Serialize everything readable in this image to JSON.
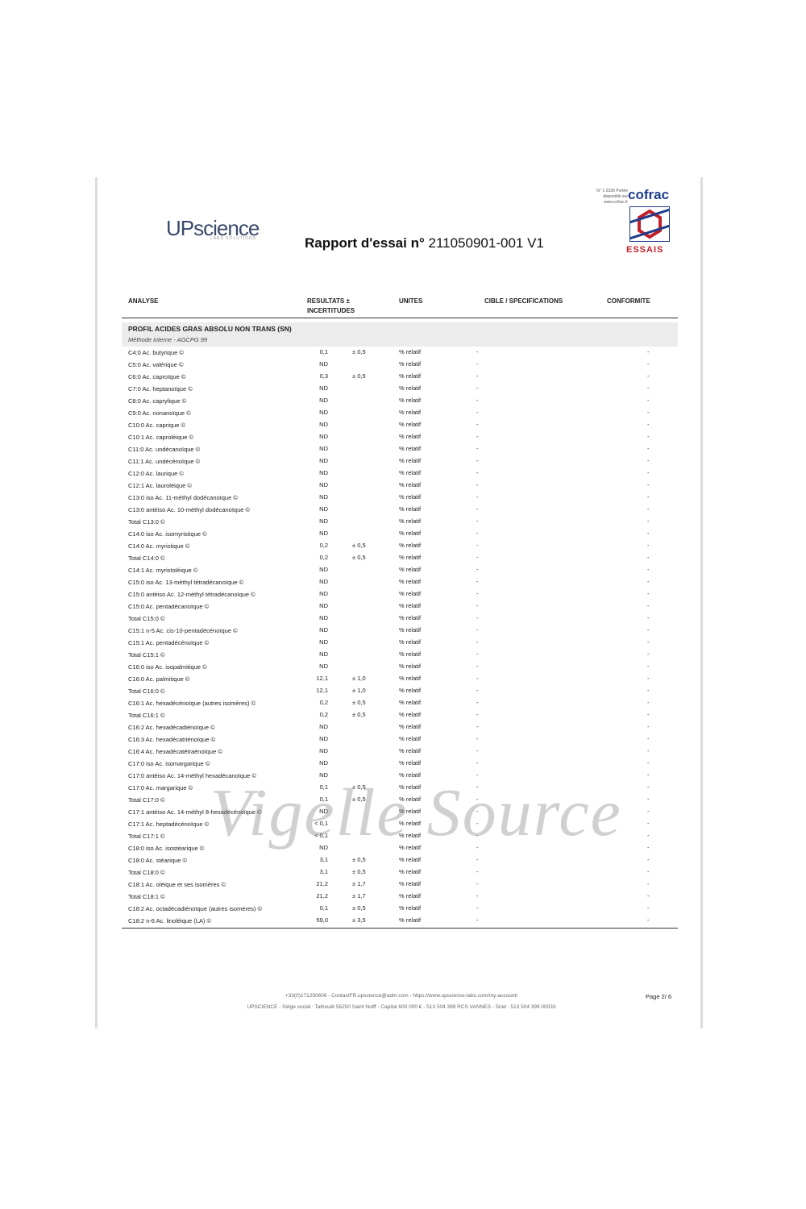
{
  "header": {
    "logo": "UPscience",
    "logo_sub": "LABS SOLUTIONS",
    "title_bold": "Rapport d'essai n°",
    "title_number": "211050901-001  V1",
    "cofrac_note": "N° 1-2336 Portée disponible sur www.cofrac.fr",
    "cofrac": "cofrac",
    "cofrac_sub": "ESSAIS"
  },
  "table": {
    "columns": [
      "ANALYSE",
      "RESULTATS ± INCERTITUDES",
      "UNITES",
      "CIBLE / SPECIFICATIONS",
      "CONFORMITE"
    ],
    "section": "PROFIL ACIDES GRAS ABSOLU NON TRANS (SN)",
    "method": "Méthode interne - AGCPG 99",
    "rows": [
      {
        "analyse": "C4:0 Ac. butyrique ©",
        "resultat": "0,1",
        "incertitude": "± 0,5",
        "unite": "% relatif",
        "cible": "-",
        "conformite": "-"
      },
      {
        "analyse": "C5:0 Ac. valérique ©",
        "resultat": "ND",
        "unite": "% relatif",
        "cible": "-",
        "conformite": "-"
      },
      {
        "analyse": "C6:0 Ac. caproïque ©",
        "resultat": "0,3",
        "incertitude": "± 0,5",
        "unite": "% relatif",
        "cible": "-",
        "conformite": "-"
      },
      {
        "analyse": "C7:0 Ac. heptanoïque ©",
        "resultat": "ND",
        "unite": "% relatif",
        "cible": "-",
        "conformite": "-"
      },
      {
        "analyse": "C8:0 Ac. caprylique ©",
        "resultat": "ND",
        "unite": "% relatif",
        "cible": "-",
        "conformite": "-"
      },
      {
        "analyse": "C9:0 Ac. nonanoïque ©",
        "resultat": "ND",
        "unite": "% relatif",
        "cible": "-",
        "conformite": "-"
      },
      {
        "analyse": "C10:0 Ac. caprique ©",
        "resultat": "ND",
        "unite": "% relatif",
        "cible": "-",
        "conformite": "-"
      },
      {
        "analyse": "C10:1 Ac. caproléique ©",
        "resultat": "ND",
        "unite": "% relatif",
        "cible": "-",
        "conformite": "-"
      },
      {
        "analyse": "C11:0 Ac. undécanoïque ©",
        "resultat": "ND",
        "unite": "% relatif",
        "cible": "-",
        "conformite": "-"
      },
      {
        "analyse": "C11:1 Ac. undécénoïque ©",
        "resultat": "ND",
        "unite": "% relatif",
        "cible": "-",
        "conformite": "-"
      },
      {
        "analyse": "C12:0 Ac. laurique ©",
        "resultat": "ND",
        "unite": "% relatif",
        "cible": "-",
        "conformite": "-"
      },
      {
        "analyse": "C12:1 Ac. lauroléique ©",
        "resultat": "ND",
        "unite": "% relatif",
        "cible": "-",
        "conformite": "-"
      },
      {
        "analyse": "C13:0 iso Ac. 11-méthyl dodécanoïque ©",
        "resultat": "ND",
        "unite": "% relatif",
        "cible": "-",
        "conformite": "-"
      },
      {
        "analyse": "C13:0 antéiso Ac. 10-méthyl dodécanoïque ©",
        "resultat": "ND",
        "unite": "% relatif",
        "cible": "-",
        "conformite": "-"
      },
      {
        "analyse": "Total C13:0 ©",
        "resultat": "ND",
        "unite": "% relatif",
        "cible": "-",
        "conformite": "-"
      },
      {
        "analyse": "C14:0 iso Ac. isomyristique ©",
        "resultat": "ND",
        "unite": "% relatif",
        "cible": "-",
        "conformite": "-"
      },
      {
        "analyse": "C14:0 Ac. myristique ©",
        "resultat": "0,2",
        "incertitude": "± 0,5",
        "unite": "% relatif",
        "cible": "-",
        "conformite": "-"
      },
      {
        "analyse": "Total C14:0 ©",
        "resultat": "0,2",
        "incertitude": "± 0,5",
        "unite": "% relatif",
        "cible": "-",
        "conformite": "-"
      },
      {
        "analyse": "C14:1 Ac. myristoléique ©",
        "resultat": "ND",
        "unite": "% relatif",
        "cible": "-",
        "conformite": "-"
      },
      {
        "analyse": "C15:0 iso Ac. 13-méthyl tétradécanoïque ©",
        "resultat": "ND",
        "unite": "% relatif",
        "cible": "-",
        "conformite": "-"
      },
      {
        "analyse": "C15:0 antéiso Ac. 12-méthyl tétradécanoïque ©",
        "resultat": "ND",
        "unite": "% relatif",
        "cible": "-",
        "conformite": "-"
      },
      {
        "analyse": "C15:0 Ac. pentadécanoïque ©",
        "resultat": "ND",
        "unite": "% relatif",
        "cible": "-",
        "conformite": "-"
      },
      {
        "analyse": "Total C15:0 ©",
        "resultat": "ND",
        "unite": "% relatif",
        "cible": "-",
        "conformite": "-"
      },
      {
        "analyse": "C15:1 n-5 Ac. cis-10-pentadécénoïque ©",
        "resultat": "ND",
        "unite": "% relatif",
        "cible": "-",
        "conformite": "-"
      },
      {
        "analyse": "C15:1 Ac. pentadécénoïque ©",
        "resultat": "ND",
        "unite": "% relatif",
        "cible": "-",
        "conformite": "-"
      },
      {
        "analyse": "Total C15:1 ©",
        "resultat": "ND",
        "unite": "% relatif",
        "cible": "-",
        "conformite": "-"
      },
      {
        "analyse": "C16:0 iso Ac. isopalmitique ©",
        "resultat": "ND",
        "unite": "% relatif",
        "cible": "-",
        "conformite": "-"
      },
      {
        "analyse": "C16:0 Ac. palmitique ©",
        "resultat": "12,1",
        "incertitude": "± 1,0",
        "unite": "% relatif",
        "cible": "-",
        "conformite": "-"
      },
      {
        "analyse": "Total C16:0 ©",
        "resultat": "12,1",
        "incertitude": "± 1,0",
        "unite": "% relatif",
        "cible": "-",
        "conformite": "-"
      },
      {
        "analyse": "C16:1 Ac. hexadécénoïque (autres isomères) ©",
        "resultat": "0,2",
        "incertitude": "± 0,5",
        "unite": "% relatif",
        "cible": "-",
        "conformite": "-"
      },
      {
        "analyse": "Total C16:1 ©",
        "resultat": "0,2",
        "incertitude": "± 0,5",
        "unite": "% relatif",
        "cible": "-",
        "conformite": "-"
      },
      {
        "analyse": "C16:2 Ac. hexadécadiénoïque ©",
        "resultat": "ND",
        "unite": "% relatif",
        "cible": "-",
        "conformite": "-"
      },
      {
        "analyse": "C16:3 Ac. hexadécatriénoïque ©",
        "resultat": "ND",
        "unite": "% relatif",
        "cible": "-",
        "conformite": "-"
      },
      {
        "analyse": "C16:4 Ac. hexadécatétraénoïque ©",
        "resultat": "ND",
        "unite": "% relatif",
        "cible": "-",
        "conformite": "-"
      },
      {
        "analyse": "C17:0 iso Ac. isomargarique ©",
        "resultat": "ND",
        "unite": "% relatif",
        "cible": "-",
        "conformite": "-"
      },
      {
        "analyse": "C17:0 antéiso Ac. 14-méthyl hexadécanoïque ©",
        "resultat": "ND",
        "unite": "% relatif",
        "cible": "-",
        "conformite": "-"
      },
      {
        "analyse": "C17:0 Ac. margarique ©",
        "resultat": "0,1",
        "incertitude": "± 0,5",
        "unite": "% relatif",
        "cible": "-",
        "conformite": "-"
      },
      {
        "analyse": "Total C17:0 ©",
        "resultat": "0,1",
        "incertitude": "± 0,5",
        "unite": "% relatif",
        "cible": "-",
        "conformite": "-"
      },
      {
        "analyse": "C17:1 antéiso Ac. 14-méthyl 8-hexadécénoïque ©",
        "resultat": "ND",
        "unite": "% relatif",
        "cible": "-",
        "conformite": "-"
      },
      {
        "analyse": "C17:1 Ac. heptadécénoïque ©",
        "resultat": "< 0,1",
        "unite": "% relatif",
        "cible": "-",
        "conformite": "-"
      },
      {
        "analyse": "Total C17:1 ©",
        "resultat": "< 0,1",
        "unite": "% relatif",
        "cible": "-",
        "conformite": "-"
      },
      {
        "analyse": "C18:0 iso Ac. isostéarique ©",
        "resultat": "ND",
        "unite": "% relatif",
        "cible": "-",
        "conformite": "-"
      },
      {
        "analyse": "C18:0 Ac. stéarique ©",
        "resultat": "3,1",
        "incertitude": "± 0,5",
        "unite": "% relatif",
        "cible": "-",
        "conformite": "-"
      },
      {
        "analyse": "Total C18:0 ©",
        "resultat": "3,1",
        "incertitude": "± 0,5",
        "unite": "% relatif",
        "cible": "-",
        "conformite": "-"
      },
      {
        "analyse": "C18:1 Ac. oléique et ses isomères ©",
        "resultat": "21,2",
        "incertitude": "± 1,7",
        "unite": "% relatif",
        "cible": "-",
        "conformite": "-"
      },
      {
        "analyse": "Total C18:1 ©",
        "resultat": "21,2",
        "incertitude": "± 1,7",
        "unite": "% relatif",
        "cible": "-",
        "conformite": "-"
      },
      {
        "analyse": "C18:2 Ac. octadécadiénoïque (autres isomères) ©",
        "resultat": "0,1",
        "incertitude": "± 0,5",
        "unite": "% relatif",
        "cible": "-",
        "conformite": "-"
      },
      {
        "analyse": "C18:2 n-6 Ac. linoléique (LA) ©",
        "resultat": "59,0",
        "incertitude": "± 3,5",
        "unite": "% relatif",
        "cible": "-",
        "conformite": "-"
      }
    ]
  },
  "watermark": "Vigelle Source",
  "footer": {
    "contact": "+33(0)171250606 - ContactFR.upscience@adm.com - https://www.upscience-labs.com/my-account/",
    "company": "UPSCIENCE - Siège social : Talhouët 56250 Saint Nolff - Capital 600 000 € - 513 504 399 RCS VANNES - Siret : 513 504 399 00033",
    "page": "Page 2/ 6"
  }
}
